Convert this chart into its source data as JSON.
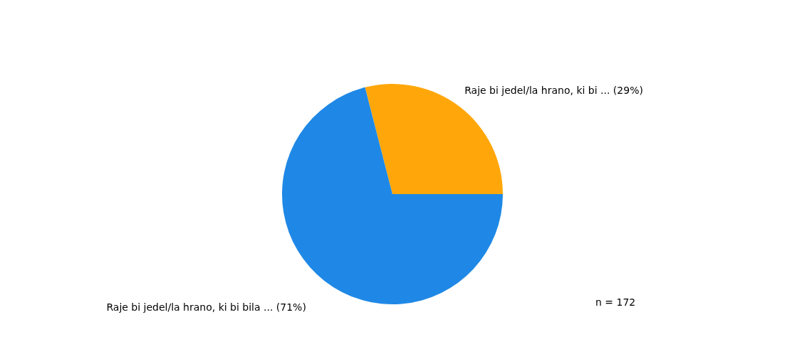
{
  "chart_data": {
    "type": "pie",
    "categories": [
      "Raje  bi jedel/la hrano, ki bi ...",
      "Raje bi jedel/la hrano, ki bi bila ..."
    ],
    "values": [
      29,
      71
    ],
    "value_labels": [
      "(29%)",
      "(71%)"
    ],
    "colors": [
      "#ffa70a",
      "#1f88e6"
    ],
    "annotations": [
      "n = 172"
    ]
  }
}
